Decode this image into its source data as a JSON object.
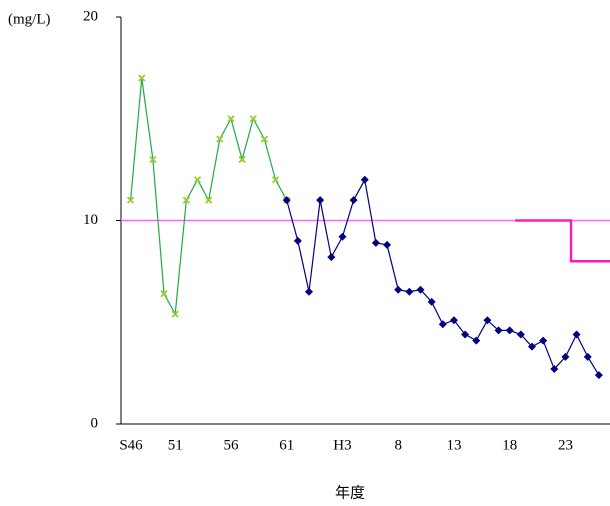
{
  "chart_data": {
    "type": "line",
    "y_label": "(mg/L)",
    "x_label": "年度",
    "categories": [
      "S46",
      null,
      null,
      null,
      null,
      "51",
      null,
      null,
      null,
      null,
      "56",
      null,
      null,
      null,
      null,
      "61",
      null,
      null,
      null,
      null,
      "H3",
      null,
      null,
      null,
      null,
      "8",
      null,
      null,
      null,
      null,
      "13",
      null,
      null,
      null,
      null,
      "18",
      null,
      null,
      null,
      null,
      "23",
      null,
      null,
      null,
      null
    ],
    "ylim": [
      0,
      20
    ],
    "yticks": [
      0,
      10,
      20
    ],
    "reference_lines": [
      {
        "value": 10,
        "color": "#ff66ff"
      }
    ],
    "series": [
      {
        "color": "#22aa44",
        "marker": "x",
        "marker_color": "#99cc33",
        "values": [
          null,
          11,
          17,
          13,
          6.4,
          5.4,
          11,
          12,
          11,
          14,
          15,
          13,
          15,
          14,
          12,
          11,
          null,
          null,
          null,
          null,
          null,
          null,
          null,
          null,
          null,
          null,
          null,
          null,
          null,
          null,
          null,
          null,
          null,
          null,
          null,
          null,
          null,
          null,
          null,
          null,
          null,
          null,
          null,
          null,
          null
        ]
      },
      {
        "color": "#000080",
        "marker": "diamond",
        "marker_color": "#000080",
        "values": [
          null,
          null,
          null,
          null,
          null,
          null,
          null,
          null,
          null,
          null,
          null,
          null,
          null,
          null,
          null,
          11,
          9,
          6.5,
          11,
          8.2,
          9.2,
          11,
          12,
          8.9,
          8.8,
          6.6,
          6.5,
          6.6,
          6.0,
          4.9,
          5.1,
          4.4,
          4.1,
          5.1,
          4.6,
          4.6,
          4.4,
          3.8,
          4.1,
          2.7,
          3.3,
          4.4,
          3.3,
          2.4,
          null
        ]
      },
      {
        "color": "#ee22bb",
        "style": "step",
        "values": [
          null,
          null,
          null,
          null,
          null,
          null,
          null,
          null,
          null,
          null,
          null,
          null,
          null,
          null,
          null,
          null,
          null,
          null,
          null,
          null,
          null,
          null,
          null,
          null,
          null,
          null,
          null,
          null,
          null,
          null,
          null,
          null,
          null,
          null,
          null,
          null,
          10,
          10,
          10,
          10,
          10,
          8,
          8,
          8,
          8
        ]
      }
    ]
  }
}
